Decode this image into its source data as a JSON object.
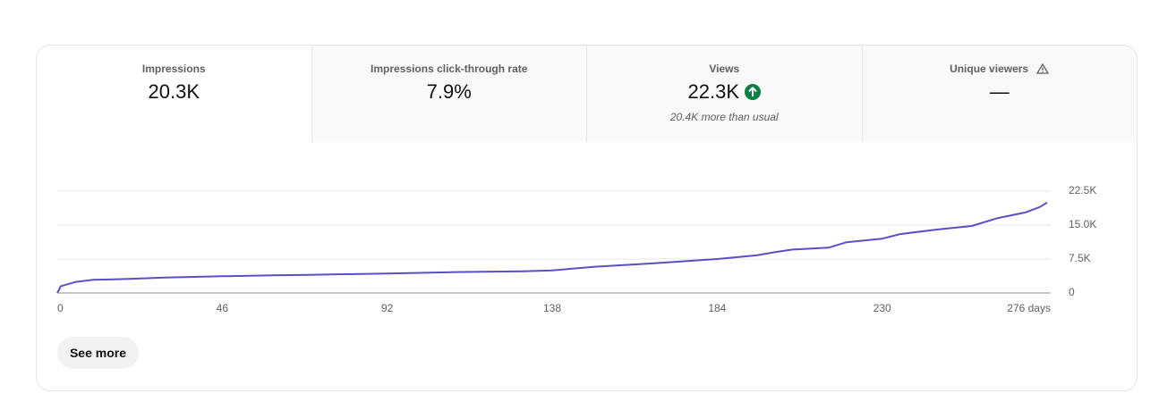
{
  "tabs": [
    {
      "label": "Impressions",
      "value": "20.3K"
    },
    {
      "label": "Impressions click-through rate",
      "value": "7.9%"
    },
    {
      "label": "Views",
      "value": "22.3K",
      "note": "20.4K more than usual"
    },
    {
      "label": "Unique viewers",
      "value": "—"
    }
  ],
  "chart_data": {
    "type": "line",
    "x": [
      0,
      1,
      5,
      10,
      20,
      30,
      46,
      60,
      70,
      92,
      110,
      130,
      138,
      150,
      165,
      184,
      195,
      200,
      205,
      215,
      220,
      230,
      235,
      245,
      255,
      262,
      270,
      274,
      276
    ],
    "values": [
      0,
      1500,
      2400,
      2900,
      3100,
      3400,
      3700,
      3900,
      4000,
      4300,
      4600,
      4800,
      5000,
      5800,
      6500,
      7500,
      8300,
      9000,
      9600,
      10000,
      11200,
      12000,
      13000,
      14000,
      14800,
      16500,
      17800,
      19000,
      20000
    ],
    "color": "#5b4fc7",
    "xlim": [
      0,
      277
    ],
    "ylim": [
      0,
      22500
    ],
    "xticks": [
      0,
      46,
      92,
      138,
      184,
      230,
      {
        "value": 276,
        "label": "276 days"
      }
    ],
    "yticks": [
      0,
      {
        "value": 7500,
        "label": "7.5K"
      },
      {
        "value": 15000,
        "label": "15.0K"
      },
      {
        "value": 22500,
        "label": "22.5K"
      }
    ],
    "grid": true
  },
  "button": "See more"
}
